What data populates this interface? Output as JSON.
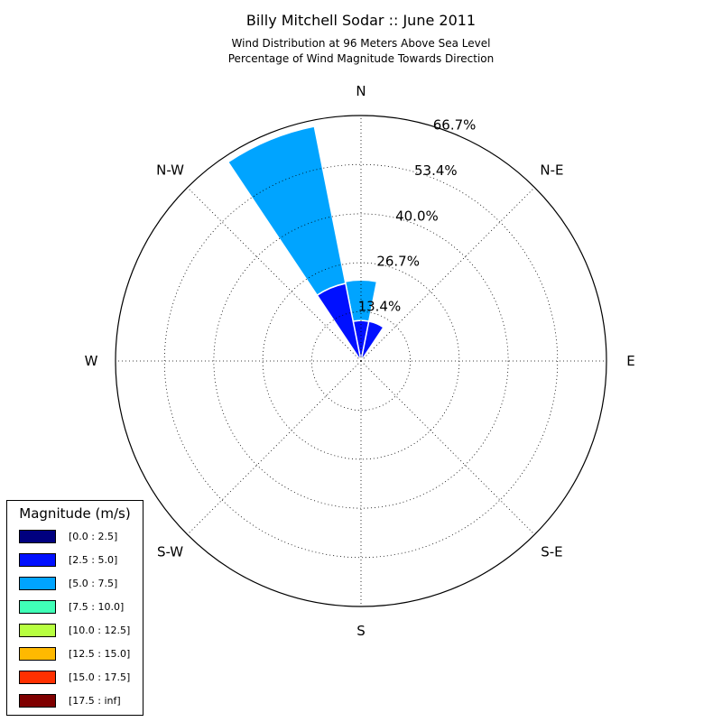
{
  "header": {
    "title": "Billy Mitchell Sodar :: June 2011",
    "subtitle_line1": "Wind Distribution at 96 Meters Above Sea Level",
    "subtitle_line2": "Percentage of Wind Magnitude Towards Direction"
  },
  "chart_data": {
    "type": "windrose",
    "radial_max": 66.7,
    "ring_labels": [
      "13.4%",
      "26.7%",
      "40.0%",
      "53.4%",
      "66.7%"
    ],
    "ring_values": [
      13.4,
      26.7,
      40.0,
      53.4,
      66.7
    ],
    "direction_labels": [
      {
        "label": "N",
        "angle": 0
      },
      {
        "label": "N-E",
        "angle": 45
      },
      {
        "label": "E",
        "angle": 90
      },
      {
        "label": "S-E",
        "angle": 135
      },
      {
        "label": "S",
        "angle": 180
      },
      {
        "label": "S-W",
        "angle": 225
      },
      {
        "label": "W",
        "angle": 270
      },
      {
        "label": "N-W",
        "angle": 315
      }
    ],
    "sector_width_deg": 22.5,
    "bins": [
      {
        "label": "[0.0 : 2.5]",
        "color": "#00007f"
      },
      {
        "label": "[2.5 : 5.0]",
        "color": "#0010ff"
      },
      {
        "label": "[5.0 : 7.5]",
        "color": "#00a4ff"
      },
      {
        "label": "[7.5 : 10.0]",
        "color": "#40ffb7"
      },
      {
        "label": "[10.0 : 12.5]",
        "color": "#b7ff40"
      },
      {
        "label": "[12.5 : 15.0]",
        "color": "#ffb900"
      },
      {
        "label": "[15.0 : 17.5]",
        "color": "#ff3000"
      },
      {
        "label": "[17.5 : inf]",
        "color": "#7f0000"
      }
    ],
    "sectors": [
      {
        "direction": 0,
        "stack": [
          0,
          11,
          11,
          0,
          0,
          0,
          0,
          0
        ]
      },
      {
        "direction": 22.5,
        "stack": [
          0,
          11,
          0,
          0,
          0,
          0,
          0,
          0
        ]
      },
      {
        "direction": 337.5,
        "stack": [
          0,
          21.5,
          43.5,
          0,
          0,
          0,
          0,
          0
        ]
      }
    ]
  },
  "legend": {
    "title": "Magnitude (m/s)"
  }
}
